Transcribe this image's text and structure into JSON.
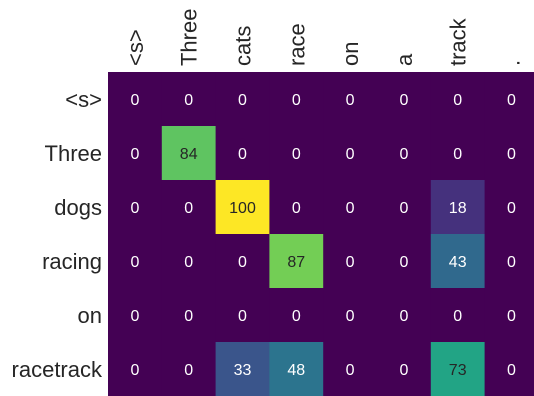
{
  "chart_data": {
    "type": "heatmap",
    "title": "",
    "xlabel": "",
    "ylabel": "",
    "x_labels": [
      "<s>",
      "Three",
      "cats",
      "race",
      "on",
      "a",
      "track",
      "."
    ],
    "y_labels": [
      "<s>",
      "Three",
      "dogs",
      "racing",
      "on",
      "racetrack"
    ],
    "values": [
      [
        0,
        0,
        0,
        0,
        0,
        0,
        0,
        0
      ],
      [
        0,
        84,
        0,
        0,
        0,
        0,
        0,
        0
      ],
      [
        0,
        0,
        100,
        0,
        0,
        0,
        18,
        0
      ],
      [
        0,
        0,
        0,
        87,
        0,
        0,
        43,
        0
      ],
      [
        0,
        0,
        0,
        0,
        0,
        0,
        0,
        0
      ],
      [
        0,
        0,
        33,
        48,
        0,
        0,
        73,
        0
      ]
    ],
    "value_range": [
      0,
      100
    ],
    "colormap": "viridis",
    "grid": false,
    "legend": "none"
  }
}
